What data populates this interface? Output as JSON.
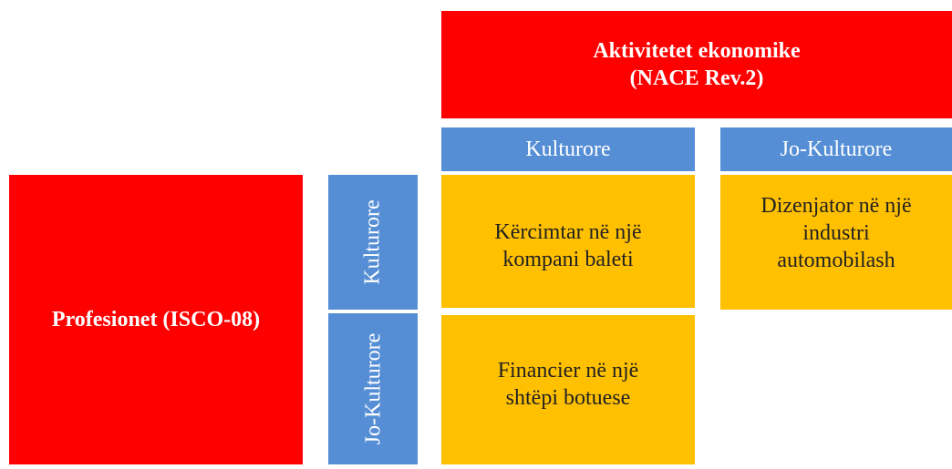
{
  "header": {
    "lines": [
      "Aktivitetet ekonomike",
      "(NACE Rev.2)"
    ]
  },
  "columns": [
    "Kulturore",
    "Jo-Kulturore"
  ],
  "side": {
    "title": "Profesionet (ISCO-08)"
  },
  "rows": [
    "Kulturore",
    "Jo-Kulturore"
  ],
  "cells": [
    {
      "lines": [
        "Kërcimtar në një",
        "kompani baleti"
      ]
    },
    {
      "lines": [
        "Dizenjator në një",
        "industri",
        "automobilash"
      ]
    },
    {
      "lines": [
        "Financier në një",
        "shtëpi botuese"
      ]
    }
  ]
}
